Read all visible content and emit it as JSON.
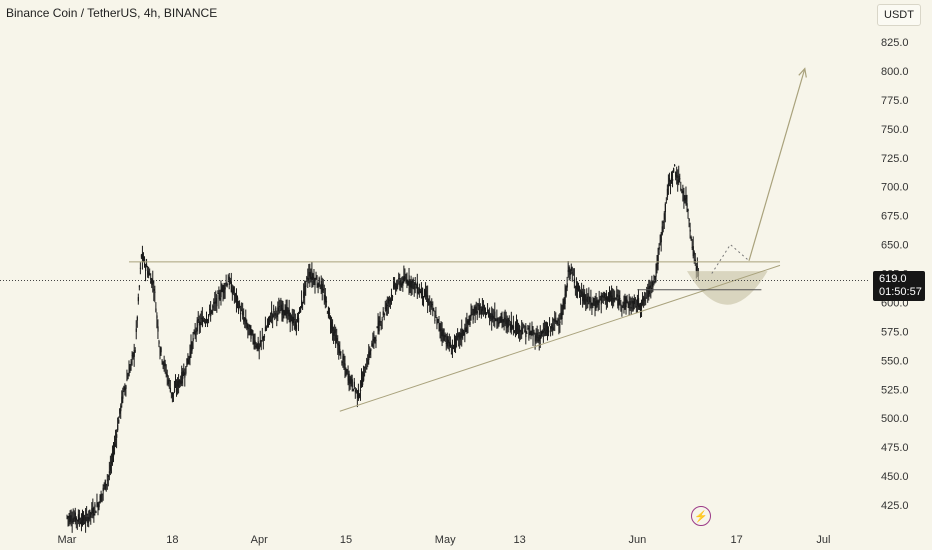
{
  "header": {
    "title": "Binance Coin / TetherUS, 4h, BINANCE"
  },
  "toolbar": {
    "unit_label": "USDT",
    "bolt_icon": "lightning-icon"
  },
  "price_label": {
    "value": "619.0",
    "countdown": "01:50:57"
  },
  "colors": {
    "background": "#f7f5ea",
    "candles": "#1a1a1a",
    "drawings": "#a9a27c",
    "cup": "#c9c3a8",
    "last_price_line": "#444444"
  },
  "chart_data": {
    "type": "candlestick",
    "title": "Binance Coin / TetherUS, 4h, BINANCE",
    "x_tick_labels": [
      "Mar",
      "18",
      "Apr",
      "15",
      "May",
      "13",
      "Jun",
      "17",
      "Jul"
    ],
    "y_tick_labels": [
      "425.0",
      "450.0",
      "475.0",
      "500.0",
      "525.0",
      "550.0",
      "575.0",
      "600.0",
      "625.0",
      "650.0",
      "675.0",
      "700.0",
      "725.0",
      "750.0",
      "775.0",
      "800.0",
      "825.0"
    ],
    "ylim": [
      405,
      840
    ],
    "last_price": 619.0,
    "price_path": [
      {
        "date": "Mar 1",
        "price": 415
      },
      {
        "date": "Mar 4",
        "price": 412
      },
      {
        "date": "Mar 6",
        "price": 425
      },
      {
        "date": "Mar 8",
        "price": 455
      },
      {
        "date": "Mar 10",
        "price": 520
      },
      {
        "date": "Mar 12",
        "price": 560
      },
      {
        "date": "Mar 13",
        "price": 640
      },
      {
        "date": "Mar 15",
        "price": 615
      },
      {
        "date": "Mar 16",
        "price": 560
      },
      {
        "date": "Mar 18",
        "price": 520
      },
      {
        "date": "Mar 20",
        "price": 540
      },
      {
        "date": "Mar 22",
        "price": 580
      },
      {
        "date": "Mar 24",
        "price": 590
      },
      {
        "date": "Mar 27",
        "price": 620
      },
      {
        "date": "Mar 30",
        "price": 580
      },
      {
        "date": "Apr 1",
        "price": 560
      },
      {
        "date": "Apr 3",
        "price": 590
      },
      {
        "date": "Apr 5",
        "price": 595
      },
      {
        "date": "Apr 7",
        "price": 580
      },
      {
        "date": "Apr 9",
        "price": 625
      },
      {
        "date": "Apr 11",
        "price": 615
      },
      {
        "date": "Apr 13",
        "price": 575
      },
      {
        "date": "Apr 15",
        "price": 540
      },
      {
        "date": "Apr 17",
        "price": 520
      },
      {
        "date": "Apr 19",
        "price": 560
      },
      {
        "date": "Apr 21",
        "price": 590
      },
      {
        "date": "Apr 23",
        "price": 615
      },
      {
        "date": "Apr 25",
        "price": 620
      },
      {
        "date": "Apr 28",
        "price": 605
      },
      {
        "date": "Apr 30",
        "price": 580
      },
      {
        "date": "May 2",
        "price": 560
      },
      {
        "date": "May 4",
        "price": 575
      },
      {
        "date": "May 6",
        "price": 595
      },
      {
        "date": "May 8",
        "price": 590
      },
      {
        "date": "May 10",
        "price": 585
      },
      {
        "date": "May 12",
        "price": 580
      },
      {
        "date": "May 14",
        "price": 575
      },
      {
        "date": "May 16",
        "price": 570
      },
      {
        "date": "May 18",
        "price": 578
      },
      {
        "date": "May 20",
        "price": 590
      },
      {
        "date": "May 21",
        "price": 630
      },
      {
        "date": "May 23",
        "price": 605
      },
      {
        "date": "May 25",
        "price": 598
      },
      {
        "date": "May 27",
        "price": 605
      },
      {
        "date": "May 29",
        "price": 602
      },
      {
        "date": "May 31",
        "price": 598
      },
      {
        "date": "Jun 2",
        "price": 600
      },
      {
        "date": "Jun 4",
        "price": 625
      },
      {
        "date": "Jun 6",
        "price": 700
      },
      {
        "date": "Jun 7",
        "price": 715
      },
      {
        "date": "Jun 8",
        "price": 700
      },
      {
        "date": "Jun 9",
        "price": 685
      },
      {
        "date": "Jun 10",
        "price": 645
      },
      {
        "date": "Jun 11",
        "price": 619
      }
    ],
    "drawings": {
      "resistance": {
        "from": "Mar 11",
        "to": "Jun 24",
        "price": 635
      },
      "ascending_trendline": {
        "from": [
          "Apr 14",
          506
        ],
        "to": [
          "Jun 24",
          632
        ]
      },
      "short_level": {
        "from": "Jun 1",
        "to": "Jun 21",
        "price": 611
      },
      "projection_arrow": [
        [
          "Jun 19",
          636
        ],
        [
          "Jun 28",
          802
        ]
      ],
      "dotted_bounce": [
        [
          "Jun 13",
          625
        ],
        [
          "Jun 16",
          650
        ],
        [
          "Jun 19",
          636
        ]
      ],
      "cup": {
        "from": "Jun 9",
        "to": "Jun 22",
        "top": 627,
        "bottom": 598
      }
    }
  }
}
